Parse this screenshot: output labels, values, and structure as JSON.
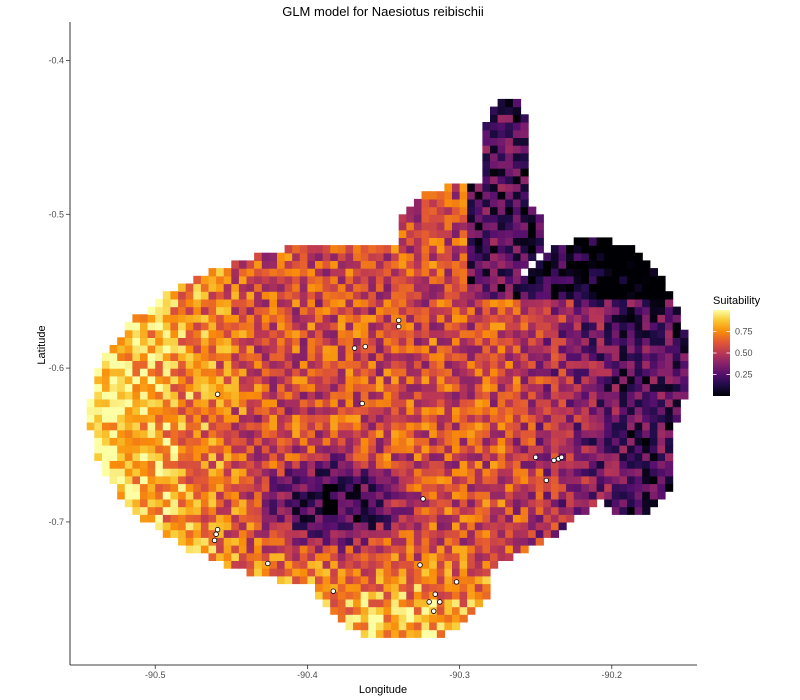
{
  "chart_data": {
    "type": "heatmap",
    "title": "GLM model for Naesiotus reibischii",
    "xlabel": "Longitude",
    "ylabel": "Latitude",
    "xlim": [
      -90.556,
      -90.144
    ],
    "ylim": [
      -0.793,
      -0.375
    ],
    "x_ticks": [
      -90.5,
      -90.4,
      -90.3,
      -90.2
    ],
    "x_tick_labels": [
      "-90.5",
      "-90.4",
      "-90.3",
      "-90.2"
    ],
    "y_ticks": [
      -0.4,
      -0.5,
      -0.6,
      -0.7
    ],
    "y_tick_labels": [
      "-0.4",
      "-0.5",
      "-0.6",
      "-0.7"
    ],
    "grid": false,
    "cell_size_deg": 0.005,
    "colorscale": "inferno",
    "color_range": [
      0,
      1
    ],
    "legend": {
      "title": "Suitability",
      "position": "right",
      "ticks": [
        0.25,
        0.5,
        0.75
      ],
      "tick_labels": [
        "0.25",
        "0.50",
        "0.75"
      ]
    },
    "occurrence_points": [
      {
        "lon": -90.459,
        "lat": -0.617
      },
      {
        "lon": -90.459,
        "lat": -0.705
      },
      {
        "lon": -90.46,
        "lat": -0.708
      },
      {
        "lon": -90.461,
        "lat": -0.712
      },
      {
        "lon": -90.426,
        "lat": -0.727
      },
      {
        "lon": -90.383,
        "lat": -0.745
      },
      {
        "lon": -90.364,
        "lat": -0.623
      },
      {
        "lon": -90.369,
        "lat": -0.587
      },
      {
        "lon": -90.362,
        "lat": -0.586
      },
      {
        "lon": -90.34,
        "lat": -0.569
      },
      {
        "lon": -90.34,
        "lat": -0.573
      },
      {
        "lon": -90.324,
        "lat": -0.685
      },
      {
        "lon": -90.326,
        "lat": -0.728
      },
      {
        "lon": -90.316,
        "lat": -0.747
      },
      {
        "lon": -90.32,
        "lat": -0.752
      },
      {
        "lon": -90.313,
        "lat": -0.752
      },
      {
        "lon": -90.317,
        "lat": -0.758
      },
      {
        "lon": -90.302,
        "lat": -0.739
      },
      {
        "lon": -90.25,
        "lat": -0.658
      },
      {
        "lon": -90.243,
        "lat": -0.673
      },
      {
        "lon": -90.238,
        "lat": -0.66
      },
      {
        "lon": -90.235,
        "lat": -0.659
      },
      {
        "lon": -90.233,
        "lat": -0.658
      }
    ]
  }
}
